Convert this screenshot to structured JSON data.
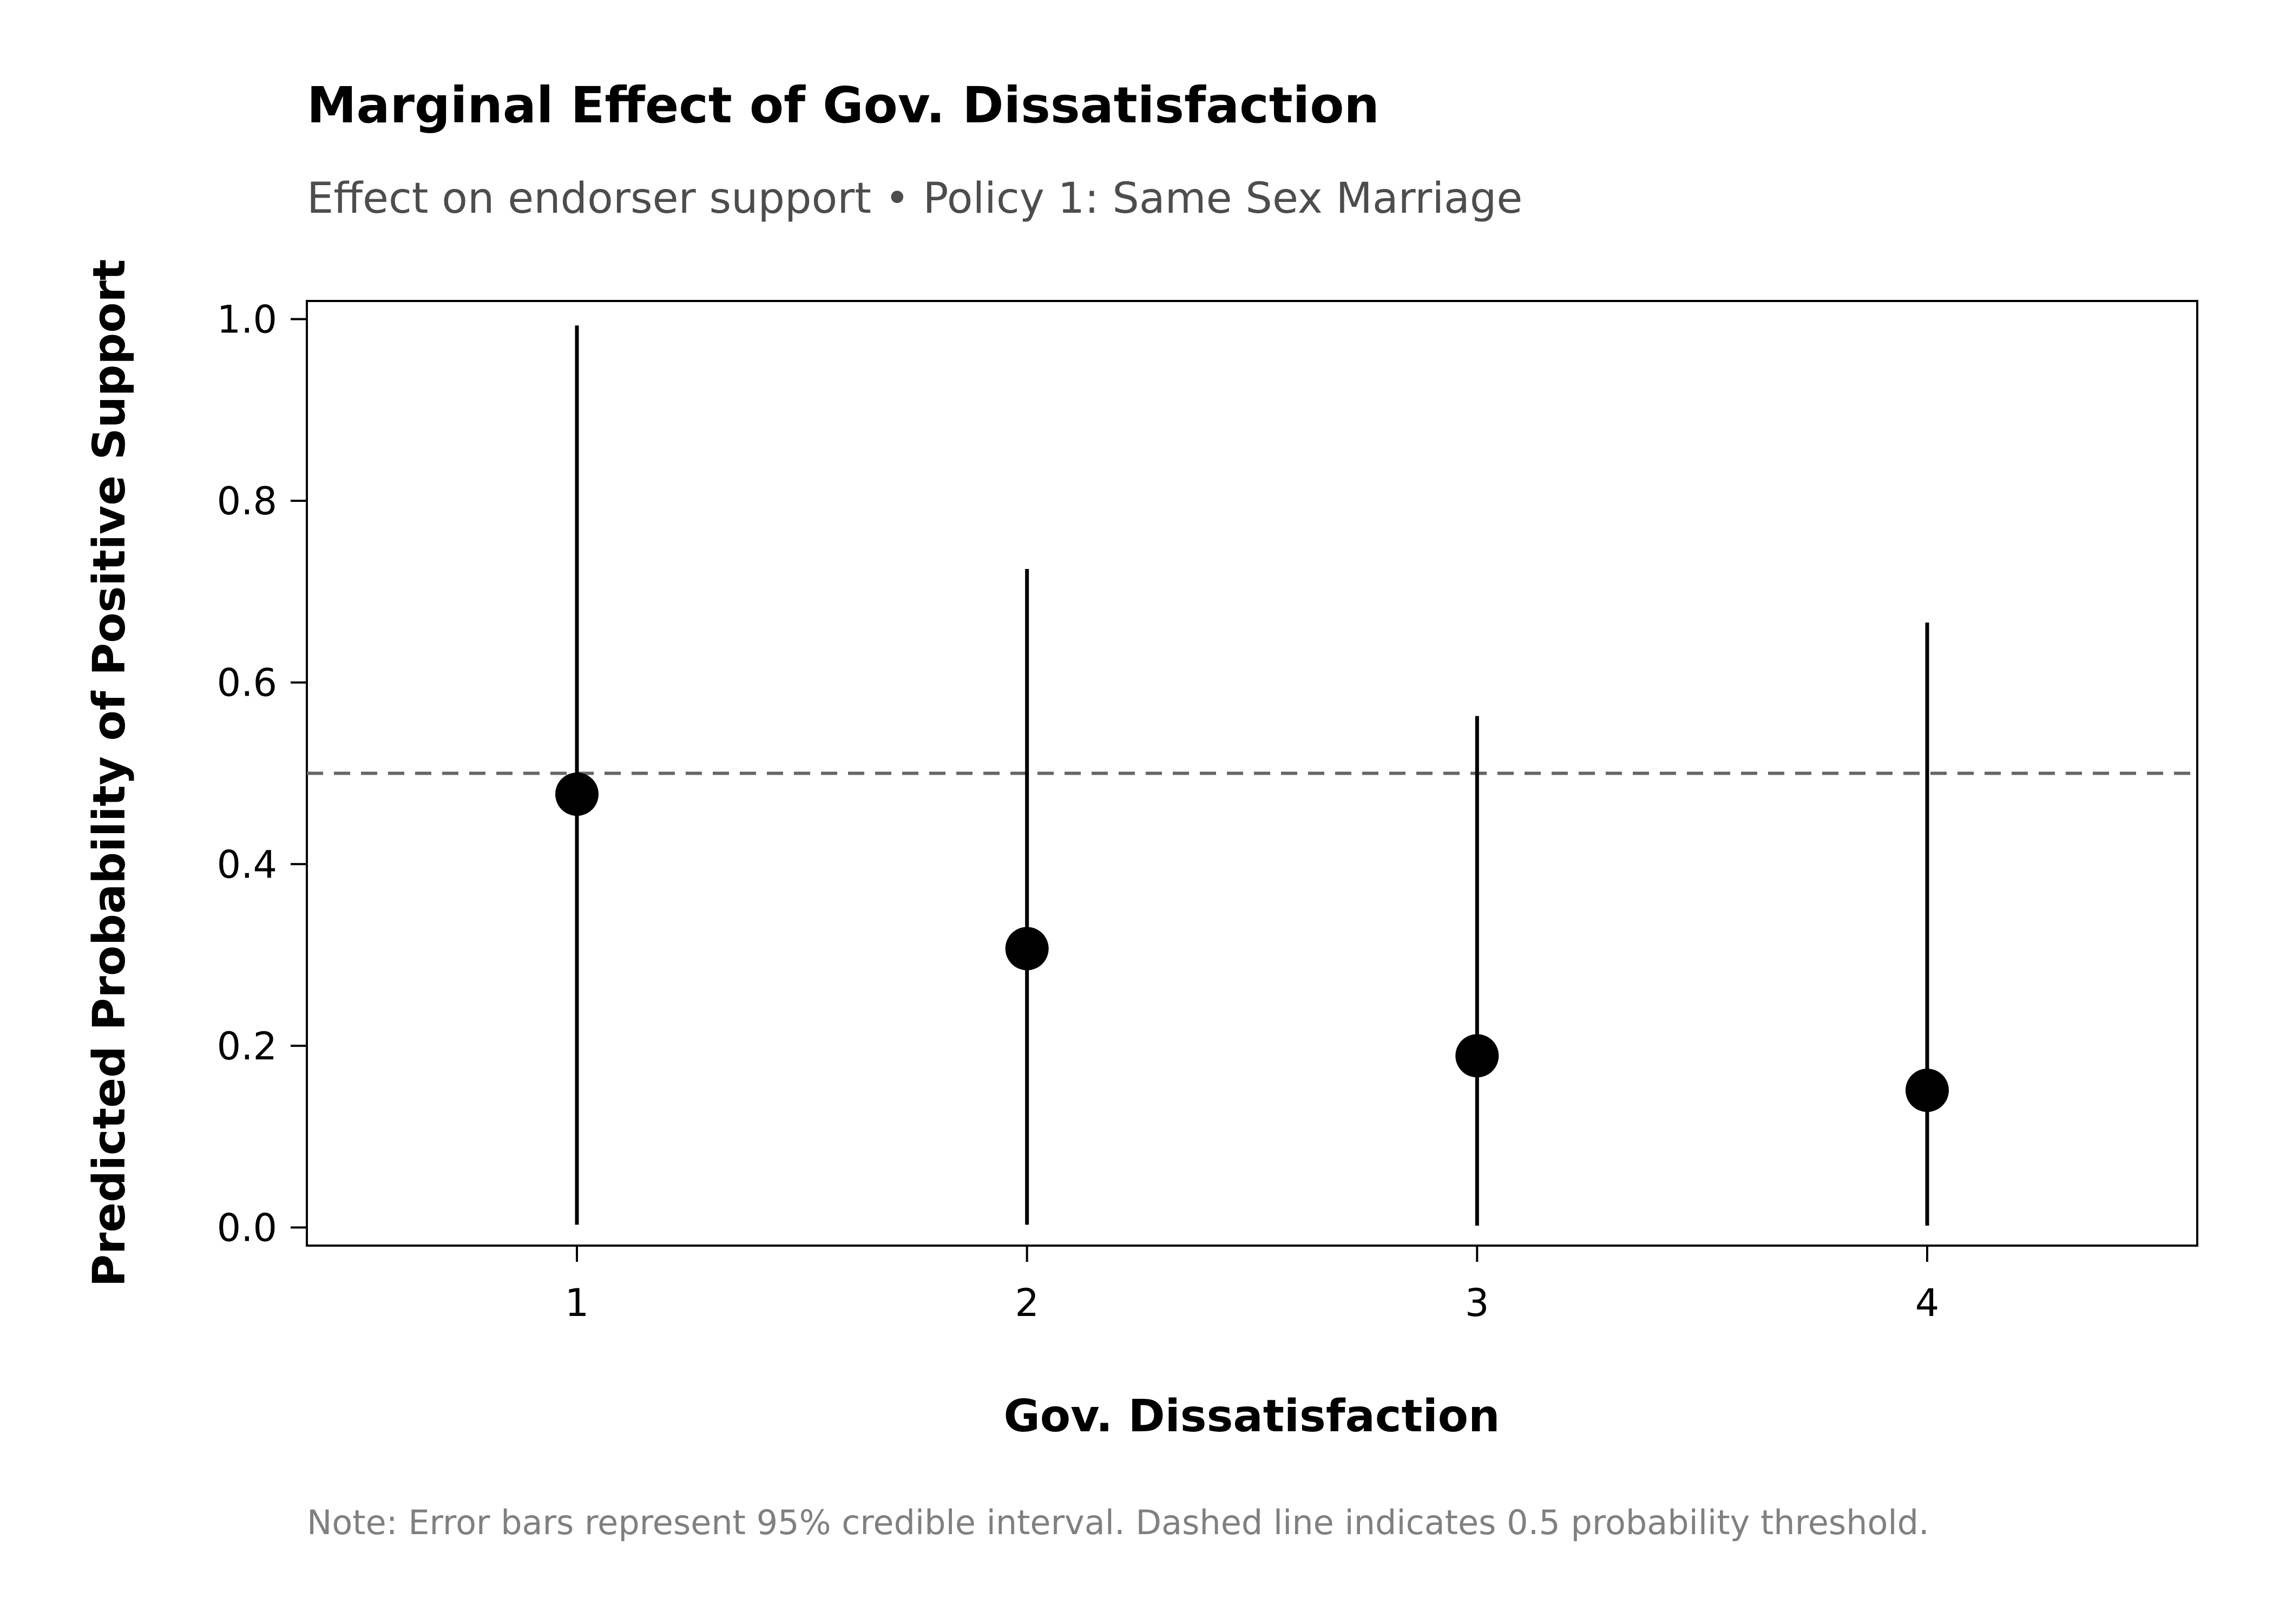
{
  "chart_data": {
    "type": "scatter",
    "title": "Marginal Effect of Gov. Dissatisfaction",
    "subtitle": "Effect on endorser support • Policy 1: Same Sex Marriage",
    "xlabel": "Gov. Dissatisfaction",
    "ylabel": "Predicted Probability of Positive Support",
    "note": "Note: Error bars represent 95% credible interval. Dashed line indicates 0.5 probability threshold.",
    "x": [
      1,
      2,
      3,
      4
    ],
    "x_tick_labels": [
      "1",
      "2",
      "3",
      "4"
    ],
    "xlim": [
      0.4,
      4.6
    ],
    "y_ticks": [
      0.0,
      0.2,
      0.4,
      0.6,
      0.8,
      1.0
    ],
    "y_tick_labels": [
      "0.0",
      "0.2",
      "0.4",
      "0.6",
      "0.8",
      "1.0"
    ],
    "ylim": [
      -0.02,
      1.02
    ],
    "series": [
      {
        "points": [
          {
            "x": 1,
            "y": 0.477,
            "lower": 0.003,
            "upper": 0.993
          },
          {
            "x": 2,
            "y": 0.307,
            "lower": 0.003,
            "upper": 0.725
          },
          {
            "x": 3,
            "y": 0.189,
            "lower": 0.002,
            "upper": 0.563
          },
          {
            "x": 4,
            "y": 0.151,
            "lower": 0.002,
            "upper": 0.666
          }
        ]
      }
    ],
    "reference_line": {
      "y": 0.5,
      "style": "dashed",
      "color": "#666666"
    },
    "marker_color": "#000000",
    "errorbar_color": "#000000",
    "grid": false,
    "legend": "none"
  }
}
